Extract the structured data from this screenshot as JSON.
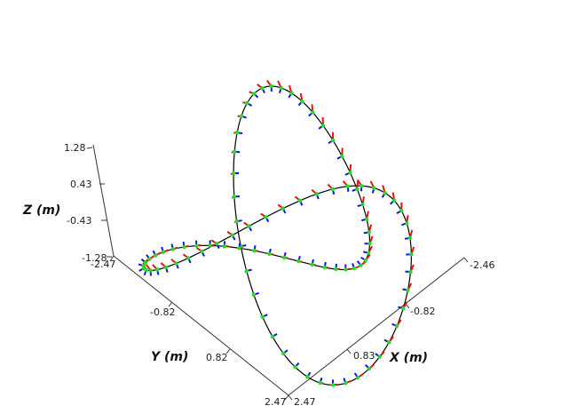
{
  "chart_data": {
    "type": "3d-line",
    "title": "",
    "axes": {
      "x": {
        "label": "X (m)",
        "ticks": [
          "2.47",
          "0.83",
          "-0.82",
          "-2.46"
        ],
        "range": [
          -2.46,
          2.47
        ]
      },
      "y": {
        "label": "Y (m)",
        "ticks": [
          "-2.47",
          "-0.82",
          "0.82",
          "2.47"
        ],
        "range": [
          -2.47,
          2.47
        ]
      },
      "z": {
        "label": "Z (m)",
        "ticks": [
          "1.28",
          "0.43",
          "-0.43",
          "-1.28"
        ],
        "range": [
          -1.28,
          1.28
        ]
      }
    },
    "series": [
      {
        "role": "trajectory",
        "color": "#000000"
      },
      {
        "role": "sample-points",
        "color": "#22dd22"
      },
      {
        "role": "orientation-axis-1",
        "color": "#ee1111"
      },
      {
        "role": "orientation-axis-2",
        "color": "#1111ee"
      }
    ],
    "description_free": true,
    "grid": false
  }
}
